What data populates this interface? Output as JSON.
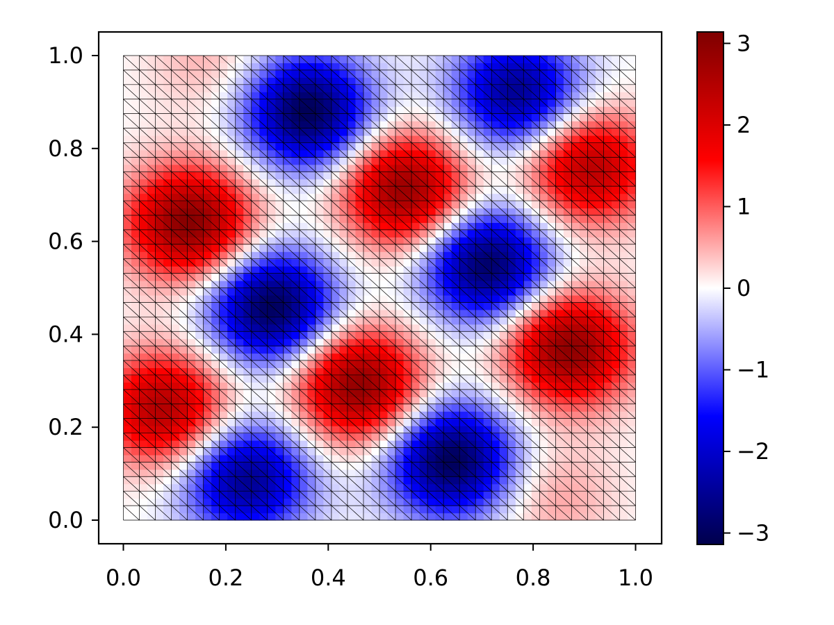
{
  "chart_data": {
    "type": "heatmap",
    "title": "",
    "xlabel": "",
    "ylabel": "",
    "xlim": [
      -0.05,
      1.05
    ],
    "ylim": [
      -0.05,
      1.05
    ],
    "x_ticks": [
      "0.0",
      "0.2",
      "0.4",
      "0.6",
      "0.8",
      "1.0"
    ],
    "y_ticks": [
      "0.0",
      "0.2",
      "0.4",
      "0.6",
      "0.8",
      "1.0"
    ],
    "x_tick_values": [
      0.0,
      0.2,
      0.4,
      0.6,
      0.8,
      1.0
    ],
    "y_tick_values": [
      0.0,
      0.2,
      0.4,
      0.6,
      0.8,
      1.0
    ],
    "colorbar": {
      "range": [
        -3.14,
        3.14
      ],
      "ticks": [
        "3",
        "2",
        "1",
        "0",
        "−1",
        "−2",
        "−3"
      ],
      "tick_values": [
        3,
        2,
        1,
        0,
        -1,
        -2,
        -3
      ],
      "colormap": "seismic",
      "colors": [
        "#00004c",
        "#0000ff",
        "#ffffff",
        "#ff0000",
        "#7f0000"
      ]
    },
    "mesh": {
      "cells_per_side": 32,
      "triangulation": "each square split by a diagonal",
      "edge_color": "#000000"
    },
    "field": {
      "domain": [
        [
          0,
          1
        ],
        [
          0,
          1
        ]
      ],
      "peaks": [
        {
          "x": 0.13,
          "y": 0.64,
          "value": 3.1
        },
        {
          "x": 0.55,
          "y": 0.71,
          "value": 2.9
        },
        {
          "x": 0.91,
          "y": 0.76,
          "value": 2.5
        },
        {
          "x": 0.46,
          "y": 0.29,
          "value": 3.0
        },
        {
          "x": 0.87,
          "y": 0.37,
          "value": 3.0
        },
        {
          "x": 0.08,
          "y": 0.24,
          "value": 2.6
        },
        {
          "x": 0.36,
          "y": 0.88,
          "value": -3.1
        },
        {
          "x": 0.77,
          "y": 0.92,
          "value": -2.6
        },
        {
          "x": 0.29,
          "y": 0.46,
          "value": -3.1
        },
        {
          "x": 0.71,
          "y": 0.55,
          "value": -3.0
        },
        {
          "x": 0.24,
          "y": 0.09,
          "value": -2.6
        },
        {
          "x": 0.64,
          "y": 0.13,
          "value": -3.1
        },
        {
          "x": 0.17,
          "y": 0.99,
          "value": 0.5
        },
        {
          "x": 0.84,
          "y": 0.05,
          "value": 0.6
        }
      ]
    }
  }
}
